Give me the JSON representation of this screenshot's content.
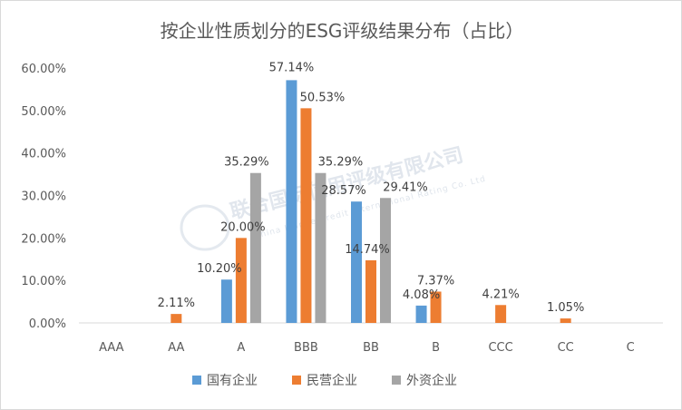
{
  "chart_data": {
    "type": "bar",
    "title": "按企业性质划分的ESG评级结果分布（占比）",
    "categories": [
      "AAA",
      "AA",
      "A",
      "BBB",
      "BB",
      "B",
      "CCC",
      "CC",
      "C"
    ],
    "series": [
      {
        "name": "国有企业",
        "color": "#5b9bd5",
        "values": [
          0,
          0,
          10.2,
          57.14,
          28.57,
          4.08,
          0,
          0,
          0
        ]
      },
      {
        "name": "民营企业",
        "color": "#ed7d31",
        "values": [
          0,
          2.11,
          20.0,
          50.53,
          14.74,
          7.37,
          4.21,
          1.05,
          0
        ]
      },
      {
        "name": "外资企业",
        "color": "#a5a5a5",
        "values": [
          0,
          0,
          35.29,
          35.29,
          29.41,
          0,
          0,
          0,
          0
        ]
      }
    ],
    "data_labels": [
      {
        "series": 0,
        "category": 2,
        "text": "10.20%"
      },
      {
        "series": 0,
        "category": 3,
        "text": "57.14%"
      },
      {
        "series": 0,
        "category": 4,
        "text": "28.57%"
      },
      {
        "series": 0,
        "category": 5,
        "text": "4.08%"
      },
      {
        "series": 1,
        "category": 1,
        "text": "2.11%"
      },
      {
        "series": 1,
        "category": 2,
        "text": "20.00%"
      },
      {
        "series": 1,
        "category": 3,
        "text": "50.53%"
      },
      {
        "series": 1,
        "category": 4,
        "text": "14.74%"
      },
      {
        "series": 1,
        "category": 5,
        "text": "7.37%"
      },
      {
        "series": 1,
        "category": 6,
        "text": "4.21%"
      },
      {
        "series": 1,
        "category": 7,
        "text": "1.05%"
      },
      {
        "series": 2,
        "category": 2,
        "text": "35.29%"
      },
      {
        "series": 2,
        "category": 3,
        "text": "35.29%"
      },
      {
        "series": 2,
        "category": 4,
        "text": "29.41%"
      }
    ],
    "yticks": [
      "0.00%",
      "10.00%",
      "20.00%",
      "30.00%",
      "40.00%",
      "50.00%",
      "60.00%"
    ],
    "ylim": [
      0,
      60
    ],
    "grid": false,
    "legend_position": "bottom",
    "watermark": {
      "text": "联合国际信用评级有限公司",
      "subtext": "China Lianhe Credit International Rating Co. Ltd"
    }
  }
}
